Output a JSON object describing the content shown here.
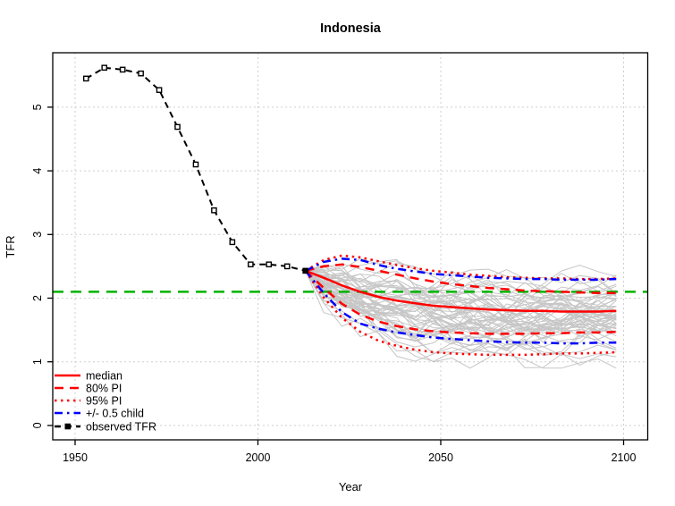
{
  "chart_data": {
    "type": "line",
    "title": "Indonesia",
    "xlabel": "Year",
    "ylabel": "TFR",
    "x_ticks": [
      "1950",
      "2000",
      "2050",
      "2100"
    ],
    "x_tick_values": [
      1950,
      2000,
      2050,
      2100
    ],
    "y_ticks": [
      "0",
      "1",
      "2",
      "3",
      "4",
      "5"
    ],
    "y_tick_values": [
      0,
      1,
      2,
      3,
      4,
      5
    ],
    "xlim": [
      1943.9,
      2106.8
    ],
    "ylim": [
      -0.26,
      5.86
    ],
    "grid": true,
    "grid_style": "dotted",
    "replacement_level": 2.1,
    "observed": {
      "name": "observed TFR",
      "years": [
        1953,
        1958,
        1963,
        1968,
        1973,
        1978,
        1983,
        1988,
        1993,
        1998,
        2003,
        2008,
        2013
      ],
      "values": [
        5.45,
        5.62,
        5.59,
        5.53,
        5.27,
        4.69,
        4.1,
        3.38,
        2.88,
        2.53,
        2.53,
        2.5,
        2.43
      ]
    },
    "projection": {
      "years": [
        2013,
        2018,
        2023,
        2028,
        2033,
        2038,
        2043,
        2048,
        2053,
        2058,
        2063,
        2068,
        2073,
        2078,
        2083,
        2088,
        2093,
        2098
      ],
      "median": [
        2.43,
        2.32,
        2.2,
        2.1,
        2.02,
        1.96,
        1.92,
        1.88,
        1.86,
        1.84,
        1.82,
        1.81,
        1.8,
        1.8,
        1.79,
        1.79,
        1.79,
        1.8
      ],
      "pi80_upper": [
        2.43,
        2.5,
        2.53,
        2.49,
        2.43,
        2.37,
        2.31,
        2.26,
        2.22,
        2.19,
        2.16,
        2.14,
        2.12,
        2.11,
        2.1,
        2.09,
        2.08,
        2.08
      ],
      "pi80_lower": [
        2.43,
        2.16,
        1.91,
        1.74,
        1.63,
        1.56,
        1.51,
        1.48,
        1.46,
        1.45,
        1.44,
        1.44,
        1.44,
        1.45,
        1.45,
        1.46,
        1.46,
        1.47
      ],
      "pi95_upper": [
        2.43,
        2.6,
        2.67,
        2.64,
        2.58,
        2.52,
        2.47,
        2.43,
        2.4,
        2.37,
        2.35,
        2.33,
        2.32,
        2.31,
        2.31,
        2.3,
        2.3,
        2.31
      ],
      "pi95_lower": [
        2.43,
        2.01,
        1.69,
        1.47,
        1.33,
        1.25,
        1.19,
        1.15,
        1.13,
        1.12,
        1.11,
        1.11,
        1.11,
        1.12,
        1.13,
        1.13,
        1.14,
        1.15
      ],
      "half_child_upper": [
        2.43,
        2.57,
        2.62,
        2.6,
        2.52,
        2.46,
        2.42,
        2.38,
        2.36,
        2.34,
        2.32,
        2.31,
        2.3,
        2.3,
        2.29,
        2.29,
        2.29,
        2.3
      ],
      "half_child_lower": [
        2.43,
        2.08,
        1.78,
        1.6,
        1.52,
        1.46,
        1.42,
        1.38,
        1.36,
        1.34,
        1.32,
        1.31,
        1.3,
        1.3,
        1.29,
        1.29,
        1.3,
        1.3
      ]
    },
    "trajectories": {
      "description": "gray sampled TFR trajectories fanning out from 2013 value 2.43, long-run level about 1.8, range about 0.9 to 3.05",
      "count": 60,
      "seed": 42,
      "start_value": 2.43,
      "long_term_mean": 1.77,
      "target_spread": 0.75,
      "step_noise": 0.31,
      "min": 0.9,
      "max": 3.05
    },
    "legend": [
      {
        "id": "median",
        "label": "median",
        "color": "#FF0000",
        "style": "solid"
      },
      {
        "id": "pi80",
        "label": "80% PI",
        "color": "#FF0000",
        "style": "dashed"
      },
      {
        "id": "pi95",
        "label": "95% PI",
        "color": "#FF0000",
        "style": "dotted"
      },
      {
        "id": "half-child",
        "label": "+/- 0.5 child",
        "color": "#0000FF",
        "style": "dashdot"
      },
      {
        "id": "observed",
        "label": "observed TFR",
        "color": "#000000",
        "style": "dashed-marker"
      }
    ],
    "legend_position": "bottomleft",
    "colors": {
      "median": "#FF0000",
      "pi": "#FF0000",
      "half_child": "#0000FF",
      "observed": "#000000",
      "replacement": "#00B400",
      "trajectories": "#C6C6C6",
      "grid": "#CFCFCF",
      "axis": "#000000",
      "background": "#FFFFFF"
    }
  }
}
